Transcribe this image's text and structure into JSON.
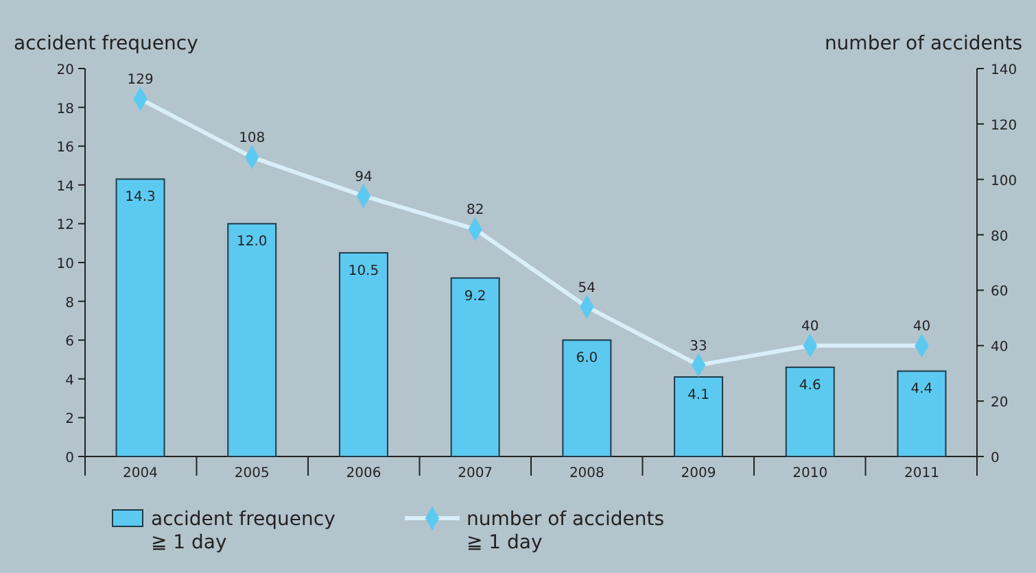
{
  "chart_data": {
    "type": "bar",
    "ylabel": "accident frequency",
    "y2label": "number of accidents",
    "categories": [
      "2004",
      "2005",
      "2006",
      "2007",
      "2008",
      "2009",
      "2010",
      "2011"
    ],
    "series": [
      {
        "name": "accident frequency\n≧ 1 day",
        "color": "#5ccaf0",
        "values": [
          14.3,
          12.0,
          10.5,
          9.2,
          6.0,
          4.1,
          4.6,
          4.4
        ],
        "value_labels": [
          "14.3",
          "12.0",
          "10.5",
          "9.2",
          "6.0",
          "4.1",
          "4.6",
          "4.4"
        ]
      },
      {
        "name": "number of accidents\n≧ 1 day",
        "type": "line",
        "axis": "y2",
        "color": "#d8eef8",
        "marker": "diamond",
        "values": [
          129,
          108,
          94,
          82,
          54,
          33,
          40,
          40
        ],
        "value_labels": [
          "129",
          "108",
          "94",
          "82",
          "54",
          "33",
          "40",
          "40"
        ]
      }
    ],
    "ylim": [
      0,
      20
    ],
    "yticks": [
      0,
      2,
      4,
      6,
      8,
      10,
      12,
      14,
      16,
      18,
      20
    ],
    "y2lim": [
      0,
      140
    ],
    "y2ticks": [
      0,
      20,
      40,
      60,
      80,
      100,
      120,
      140
    ],
    "grid": false,
    "legend": "bottom"
  }
}
